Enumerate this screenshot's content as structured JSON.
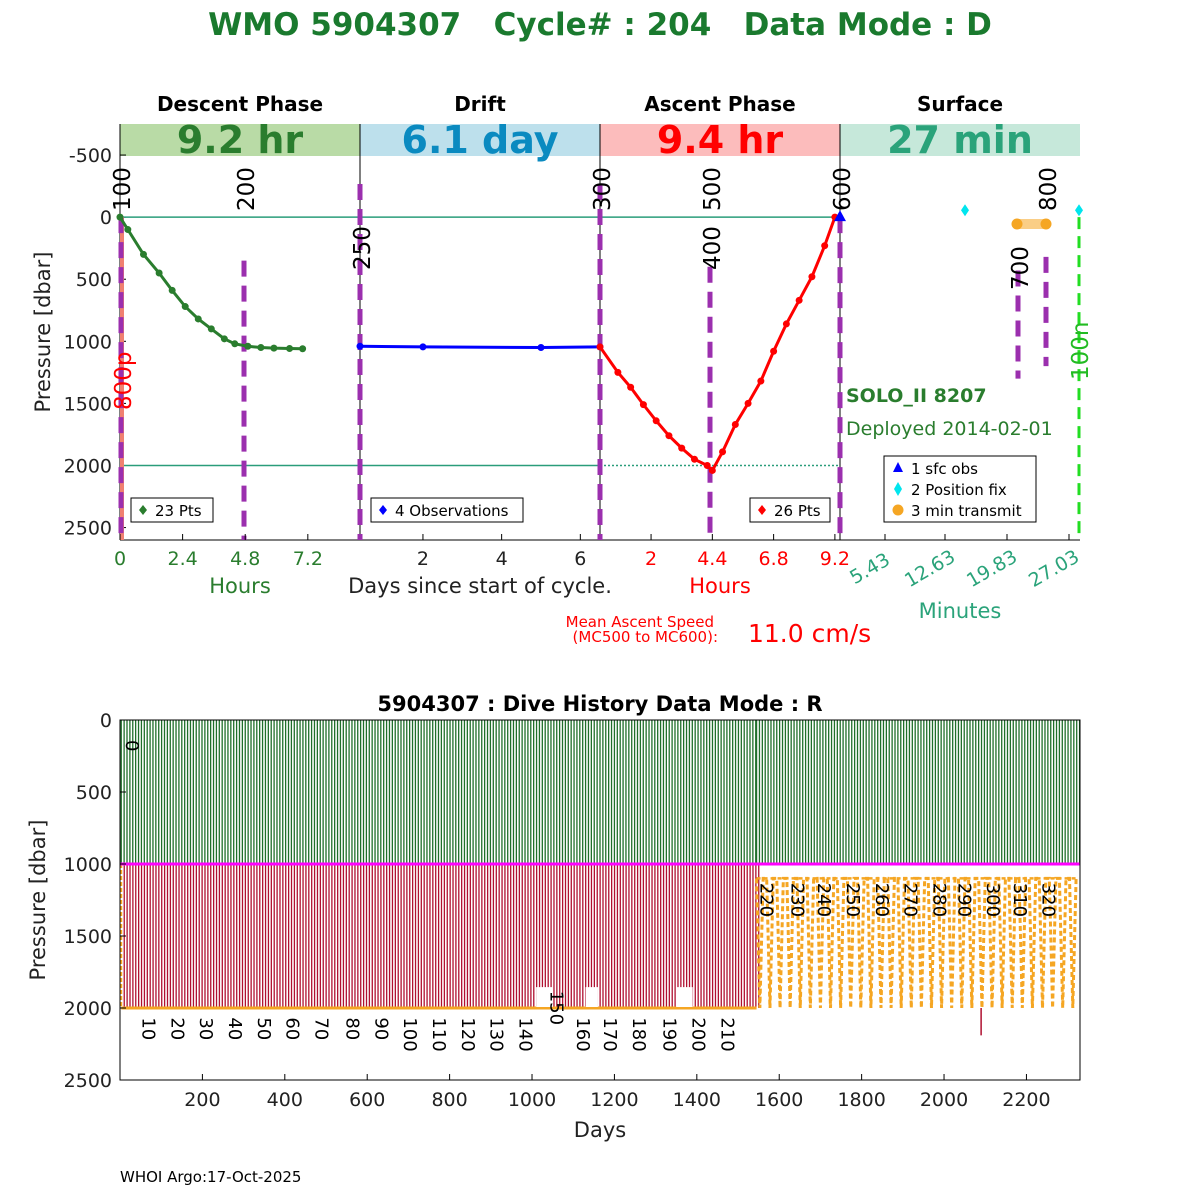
{
  "title": "WMO 5904307   Cycle# : 204   Data Mode : D",
  "colors": {
    "title": "#1a7a2e",
    "descent": "#2a7d2e",
    "drift": "#0000ff",
    "ascent": "#ff0000",
    "surface": "#2aa37a",
    "marker": "#9b2fae",
    "ref_line": "#2a9d7a",
    "hist_green": "#1f6f2a",
    "hist_red": "#b01030",
    "hist_orange": "#f5a623",
    "hist_magenta": "#ff00ff"
  },
  "phases": [
    {
      "header": "Descent Phase",
      "duration": "9.2 hr",
      "band_color": "#b9dba6",
      "text_color": "#2a7d2e"
    },
    {
      "header": "Drift",
      "duration": "6.1 day",
      "band_color": "#bde0ec",
      "text_color": "#0a8ac0"
    },
    {
      "header": "Ascent Phase",
      "duration": "9.4 hr",
      "band_color": "#fcbcbc",
      "text_color": "#ff0000"
    },
    {
      "header": "Surface",
      "duration": "27 min",
      "band_color": "#c6e8da",
      "text_color": "#2aa37a"
    }
  ],
  "top_panel": {
    "ylabel": "Pressure [dbar]",
    "y_ticks": [
      "-500",
      "0",
      "500",
      "1000",
      "1500",
      "2000",
      "2500"
    ],
    "y_tick_values": [
      -500,
      0,
      500,
      1000,
      1500,
      2000,
      2500
    ],
    "ylim": [
      -750,
      2600
    ],
    "descent": {
      "x_ticks": [
        "0",
        "2.4",
        "4.8",
        "7.2"
      ],
      "xlabel": "Hours",
      "legend": "23 Pts"
    },
    "drift": {
      "x_ticks": [
        "2",
        "4",
        "6"
      ],
      "xlabel": "Days since start of cycle.",
      "legend": "4 Observations"
    },
    "ascent": {
      "x_ticks": [
        "2",
        "4.4",
        "6.8",
        "9.2"
      ],
      "xlabel": "Hours",
      "legend": "26 Pts"
    },
    "surface": {
      "x_ticks": [
        "5.43",
        "12.63",
        "19.83",
        "27.03"
      ],
      "xlabel": "Minutes",
      "legend": [
        "1 sfc obs",
        "2 Position fix",
        "3 min transmit"
      ]
    },
    "marker_labels": [
      "100",
      "200",
      "250",
      "300",
      "400",
      "500",
      "600",
      "700",
      "800",
      "800p",
      "100n"
    ],
    "float_name": "SOLO_II 8207",
    "deployed": "Deployed 2014-02-01",
    "speed_label_line1": "Mean Ascent Speed",
    "speed_label_line2": "(MC500 to MC600):",
    "speed_value": "11.0 cm/s"
  },
  "chart_data": [
    {
      "type": "line",
      "title": "Descent Phase",
      "xlabel": "Hours",
      "ylabel": "Pressure [dbar]",
      "xlim": [
        0,
        9.2
      ],
      "ylim": [
        -750,
        2600
      ],
      "series": [
        {
          "x": [
            0,
            0.3,
            0.9,
            1.5,
            2.0,
            2.5,
            3.0,
            3.5,
            4.0,
            4.4,
            4.9,
            5.4,
            5.9,
            6.5,
            7.0
          ],
          "y": [
            0,
            100,
            300,
            450,
            590,
            720,
            820,
            900,
            980,
            1020,
            1040,
            1050,
            1055,
            1058,
            1060
          ]
        }
      ]
    },
    {
      "type": "line",
      "title": "Drift",
      "xlabel": "Days since start of cycle.",
      "ylabel": "Pressure [dbar]",
      "xlim": [
        0.4,
        6.5
      ],
      "ylim": [
        -750,
        2600
      ],
      "series": [
        {
          "x": [
            0.4,
            2.0,
            5.0,
            6.5
          ],
          "y": [
            1040,
            1045,
            1050,
            1045
          ]
        }
      ]
    },
    {
      "type": "line",
      "title": "Ascent Phase",
      "xlabel": "Hours",
      "ylabel": "Pressure [dbar]",
      "xlim": [
        0,
        9.4
      ],
      "ylim": [
        -750,
        2600
      ],
      "series": [
        {
          "x": [
            0,
            0.7,
            1.2,
            1.7,
            2.2,
            2.7,
            3.2,
            3.7,
            4.2,
            4.4,
            4.8,
            5.3,
            5.8,
            6.3,
            6.8,
            7.3,
            7.8,
            8.3,
            8.8,
            9.2
          ],
          "y": [
            1045,
            1250,
            1370,
            1510,
            1640,
            1760,
            1860,
            1950,
            2000,
            2040,
            1890,
            1670,
            1500,
            1320,
            1080,
            860,
            670,
            480,
            230,
            0
          ]
        }
      ]
    },
    {
      "type": "bar",
      "title": "5904307 : Dive History      Data Mode : R",
      "xlabel": "Days",
      "ylabel": "Pressure [dbar]",
      "x_ticks": [
        200,
        400,
        600,
        800,
        1000,
        1200,
        1400,
        1600,
        1800,
        2000,
        2200
      ],
      "y_ticks": [
        0,
        500,
        1000,
        1500,
        2000,
        2500
      ],
      "xlim": [
        0,
        2330
      ],
      "ylim": [
        0,
        2500
      ],
      "cycle_labels": [
        "0",
        "10",
        "20",
        "30",
        "40",
        "50",
        "60",
        "70",
        "80",
        "90",
        "100",
        "110",
        "120",
        "130",
        "140",
        "150",
        "160",
        "170",
        "180",
        "190",
        "200",
        "210",
        "220",
        "230",
        "240",
        "250",
        "260",
        "270",
        "280",
        "290",
        "300",
        "310",
        "320"
      ],
      "cycle_days": [
        0,
        40,
        110,
        180,
        250,
        320,
        390,
        460,
        535,
        605,
        675,
        745,
        815,
        885,
        955,
        1030,
        1095,
        1160,
        1230,
        1305,
        1375,
        1445,
        1540,
        1615,
        1680,
        1750,
        1820,
        1890,
        1960,
        2020,
        2090,
        2155,
        2225
      ],
      "drift_pressure": 1000,
      "profile_pressure": 2000,
      "late_drift_pressure": 1100
    }
  ],
  "history": {
    "title": "5904307 : Dive History      Data Mode : R",
    "ylabel": "Pressure [dbar]",
    "xlabel": "Days"
  },
  "footer": "WHOI Argo:17-Oct-2025"
}
